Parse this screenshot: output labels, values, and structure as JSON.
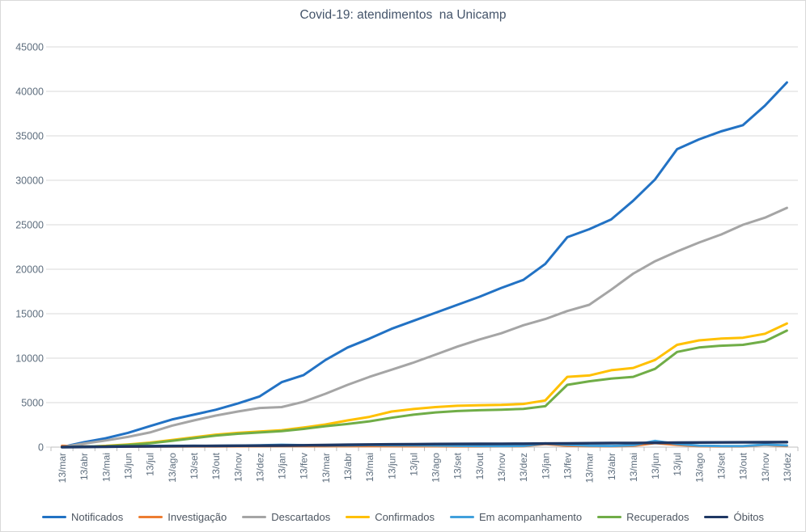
{
  "title_block": {
    "title": "Covid-19: atendimentos  na Unicamp"
  },
  "colors": {
    "title_text": "#44546A",
    "axis_label": "#5E6E7E",
    "legend_text": "#4D5661",
    "gridline": "#D9D9D9",
    "axis_line": "#BFBFBF",
    "background": "#FFFFFF",
    "border": "#D9D9D9"
  },
  "chart_data": {
    "type": "line",
    "title": "Covid-19: atendimentos  na Unicamp",
    "xlabel": "",
    "ylabel": "",
    "ylim": [
      0,
      45000
    ],
    "y_tick_step": 5000,
    "y_tick_labels": [
      "0",
      "5000",
      "10000",
      "15000",
      "20000",
      "25000",
      "30000",
      "35000",
      "40000",
      "45000"
    ],
    "grid": "horizontal",
    "legend_position": "bottom",
    "x_tick_label_rotation": -90,
    "categories": [
      "13/mar",
      "13/abr",
      "13/mai",
      "13/jun",
      "13/jul",
      "13/ago",
      "13/set",
      "13/out",
      "13/nov",
      "13/dez",
      "13/jan",
      "13/fev",
      "13/mar",
      "13/abr",
      "13/mai",
      "13/jun",
      "13/jul",
      "13/ago",
      "13/set",
      "13/out",
      "13/nov",
      "13/dez",
      "13/jan",
      "13/fev",
      "13/mar",
      "13/abr",
      "13/mai",
      "13/jun",
      "13/jul",
      "13/ago",
      "13/set",
      "13/out",
      "13/nov",
      "13/dez"
    ],
    "series": [
      {
        "id": "notificados",
        "name": "Notificados",
        "color": "#2272C4",
        "values": [
          0,
          550,
          1000,
          1600,
          2350,
          3100,
          3650,
          4200,
          4900,
          5700,
          7300,
          8100,
          9800,
          11200,
          12200,
          13300,
          14200,
          15100,
          16000,
          16900,
          17900,
          18800,
          20600,
          23600,
          24500,
          25600,
          27700,
          30100,
          33500,
          34600,
          35500,
          36200,
          38400,
          41000
        ]
      },
      {
        "id": "investigacao",
        "name": "Investigação",
        "color": "#ED7D31",
        "values": [
          150,
          100,
          60,
          50,
          60,
          70,
          80,
          80,
          90,
          100,
          120,
          110,
          100,
          100,
          110,
          100,
          90,
          90,
          80,
          80,
          90,
          100,
          350,
          150,
          100,
          90,
          150,
          450,
          250,
          100,
          80,
          80,
          250,
          120
        ]
      },
      {
        "id": "descartados",
        "name": "Descartados",
        "color": "#A5A5A5",
        "values": [
          0,
          400,
          750,
          1150,
          1650,
          2400,
          3000,
          3550,
          4000,
          4400,
          4500,
          5100,
          6000,
          7000,
          7900,
          8700,
          9500,
          10400,
          11300,
          12100,
          12800,
          13700,
          14400,
          15300,
          16000,
          17700,
          19500,
          20900,
          22000,
          23000,
          23900,
          25000,
          25800,
          26900
        ]
      },
      {
        "id": "confirmados",
        "name": "Confirmados",
        "color": "#FFC000",
        "values": [
          0,
          50,
          150,
          300,
          500,
          800,
          1100,
          1400,
          1600,
          1750,
          1900,
          2200,
          2550,
          3000,
          3400,
          4000,
          4280,
          4500,
          4650,
          4700,
          4750,
          4850,
          5250,
          7900,
          8050,
          8650,
          8900,
          9800,
          11500,
          12000,
          12200,
          12300,
          12750,
          13900
        ]
      },
      {
        "id": "em-acompanhamento",
        "name": "Em acompanhamento",
        "color": "#41A0DC",
        "values": [
          0,
          60,
          90,
          110,
          130,
          150,
          150,
          140,
          170,
          200,
          260,
          220,
          190,
          210,
          240,
          220,
          200,
          180,
          150,
          130,
          110,
          140,
          420,
          260,
          160,
          130,
          220,
          700,
          350,
          160,
          120,
          110,
          280,
          180
        ]
      },
      {
        "id": "recuperados",
        "name": "Recuperados",
        "color": "#70AD47",
        "values": [
          0,
          30,
          100,
          250,
          430,
          700,
          1000,
          1300,
          1500,
          1650,
          1800,
          2050,
          2350,
          2600,
          2900,
          3300,
          3650,
          3900,
          4050,
          4150,
          4200,
          4300,
          4600,
          7000,
          7400,
          7700,
          7900,
          8800,
          10700,
          11200,
          11400,
          11500,
          11900,
          13100
        ]
      },
      {
        "id": "obitos",
        "name": "Óbitos",
        "color": "#1F3864",
        "values": [
          0,
          20,
          45,
          70,
          90,
          110,
          125,
          140,
          155,
          165,
          180,
          200,
          230,
          260,
          290,
          310,
          330,
          345,
          355,
          365,
          375,
          385,
          400,
          420,
          440,
          450,
          460,
          480,
          500,
          515,
          525,
          535,
          545,
          560
        ]
      }
    ]
  }
}
